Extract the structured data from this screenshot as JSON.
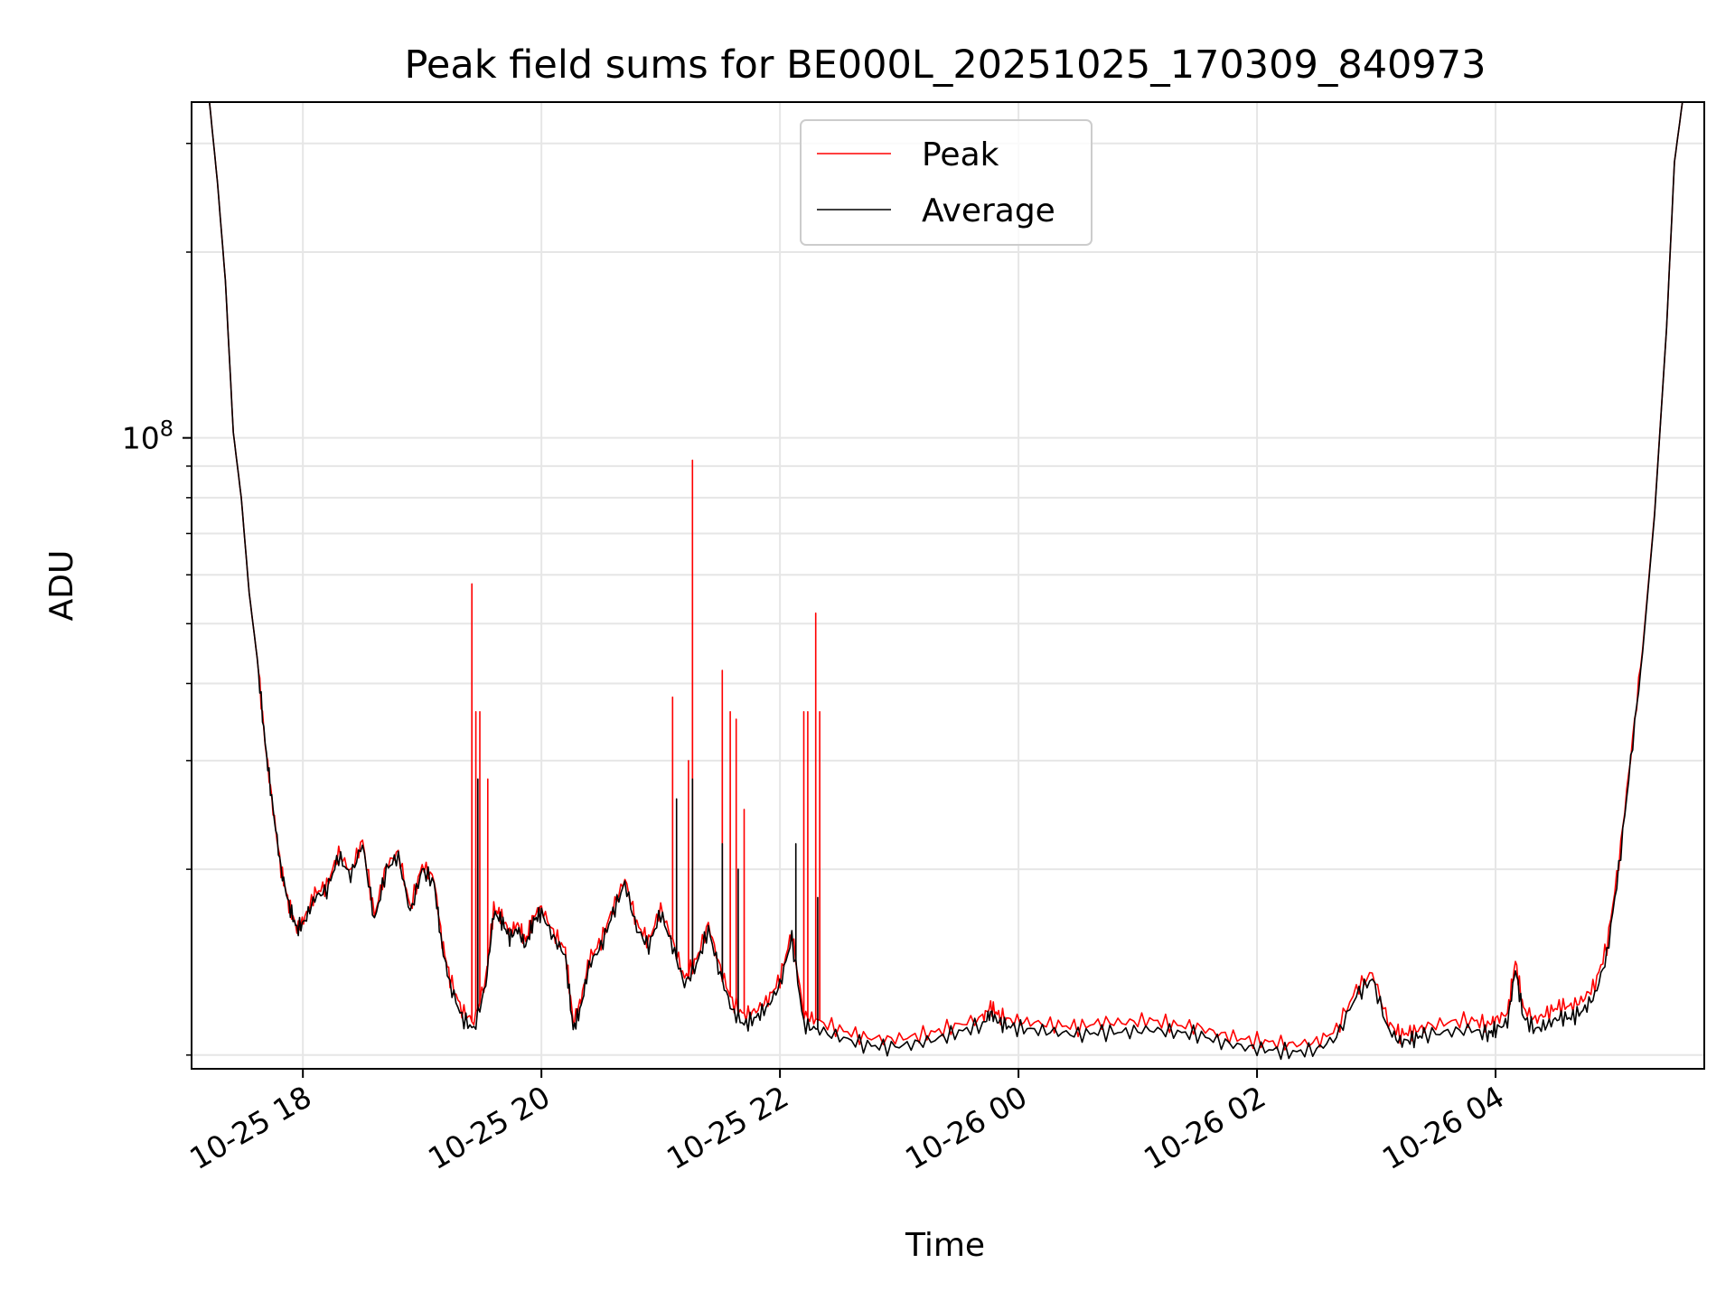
{
  "chart_data": {
    "type": "line",
    "title": "Peak field sums for BE000L_20251025_170309_840973",
    "xlabel": "Time",
    "ylabel": "ADU",
    "yscale": "log",
    "xlim": [
      "2025-10-25 17:04",
      "2025-10-26 05:45"
    ],
    "ylim": [
      9500000,
      350000000
    ],
    "grid": true,
    "legend_position": "top-center",
    "x_ticks": [
      {
        "t": "2025-10-25 18:00",
        "label": "10-25 18"
      },
      {
        "t": "2025-10-25 20:00",
        "label": "10-25 20"
      },
      {
        "t": "2025-10-25 22:00",
        "label": "10-25 22"
      },
      {
        "t": "2025-10-26 00:00",
        "label": "10-26 00"
      },
      {
        "t": "2025-10-26 02:00",
        "label": "10-26 02"
      },
      {
        "t": "2025-10-26 04:00",
        "label": "10-26 04"
      }
    ],
    "y_ticks": [
      {
        "v": 100000000,
        "base": "10",
        "exp": "8"
      }
    ],
    "y_minor_ticks": [
      10000000,
      20000000,
      30000000,
      40000000,
      50000000,
      60000000,
      70000000,
      80000000,
      90000000,
      200000000,
      300000000
    ],
    "x": [
      "2025-10-25 17:13",
      "2025-10-25 17:17",
      "2025-10-25 17:21",
      "2025-10-25 17:25",
      "2025-10-25 17:29",
      "2025-10-25 17:33",
      "2025-10-25 17:37",
      "2025-10-25 17:41",
      "2025-10-25 17:45",
      "2025-10-25 17:49",
      "2025-10-25 17:53",
      "2025-10-25 17:57",
      "2025-10-25 18:01",
      "2025-10-25 18:06",
      "2025-10-25 18:12",
      "2025-10-25 18:18",
      "2025-10-25 18:24",
      "2025-10-25 18:30",
      "2025-10-25 18:36",
      "2025-10-25 18:42",
      "2025-10-25 18:48",
      "2025-10-25 18:54",
      "2025-10-25 19:00",
      "2025-10-25 19:06",
      "2025-10-25 19:10",
      "2025-10-25 19:14",
      "2025-10-25 19:20",
      "2025-10-25 19:26",
      "2025-10-25 19:32",
      "2025-10-25 19:36",
      "2025-10-25 19:40",
      "2025-10-25 19:44",
      "2025-10-25 19:48",
      "2025-10-25 19:52",
      "2025-10-25 19:56",
      "2025-10-25 20:00",
      "2025-10-25 20:06",
      "2025-10-25 20:12",
      "2025-10-25 20:16",
      "2025-10-25 20:20",
      "2025-10-25 20:24",
      "2025-10-25 20:30",
      "2025-10-25 20:36",
      "2025-10-25 20:42",
      "2025-10-25 20:48",
      "2025-10-25 20:54",
      "2025-10-25 21:00",
      "2025-10-25 21:06",
      "2025-10-25 21:12",
      "2025-10-25 21:18",
      "2025-10-25 21:24",
      "2025-10-25 21:30",
      "2025-10-25 21:36",
      "2025-10-25 21:42",
      "2025-10-25 21:48",
      "2025-10-25 21:54",
      "2025-10-25 22:00",
      "2025-10-25 22:06",
      "2025-10-25 22:12",
      "2025-10-25 22:18",
      "2025-10-25 22:30",
      "2025-10-25 22:42",
      "2025-10-25 22:54",
      "2025-10-25 23:06",
      "2025-10-25 23:18",
      "2025-10-25 23:30",
      "2025-10-25 23:42",
      "2025-10-25 23:46",
      "2025-10-25 23:50",
      "2025-10-25 23:56",
      "2025-10-26 00:06",
      "2025-10-26 00:18",
      "2025-10-26 00:30",
      "2025-10-26 00:42",
      "2025-10-26 00:54",
      "2025-10-26 01:06",
      "2025-10-26 01:18",
      "2025-10-26 01:30",
      "2025-10-26 01:42",
      "2025-10-26 01:54",
      "2025-10-26 02:06",
      "2025-10-26 02:18",
      "2025-10-26 02:30",
      "2025-10-26 02:40",
      "2025-10-26 02:50",
      "2025-10-26 02:58",
      "2025-10-26 03:06",
      "2025-10-26 03:12",
      "2025-10-26 03:18",
      "2025-10-26 03:24",
      "2025-10-26 03:36",
      "2025-10-26 03:48",
      "2025-10-26 03:56",
      "2025-10-26 04:00",
      "2025-10-26 04:06",
      "2025-10-26 04:10",
      "2025-10-26 04:14",
      "2025-10-26 04:20",
      "2025-10-26 04:26",
      "2025-10-26 04:32",
      "2025-10-26 04:38",
      "2025-10-26 04:44",
      "2025-10-26 04:50",
      "2025-10-26 04:56",
      "2025-10-26 05:02",
      "2025-10-26 05:08",
      "2025-10-26 05:14",
      "2025-10-26 05:20",
      "2025-10-26 05:26",
      "2025-10-26 05:30",
      "2025-10-26 05:34"
    ],
    "series": [
      {
        "name": "Average",
        "color": "#000000",
        "values": [
          350000000,
          260000000,
          180000000,
          102000000,
          80000000,
          56000000,
          44000000,
          32000000,
          25000000,
          20000000,
          17500000,
          16000000,
          16500000,
          18000000,
          18500000,
          21000000,
          19500000,
          22000000,
          16500000,
          20000000,
          21000000,
          17000000,
          20000000,
          19000000,
          15000000,
          13000000,
          11500000,
          11000000,
          13000000,
          17000000,
          16500000,
          15500000,
          16000000,
          15000000,
          16500000,
          17000000,
          15500000,
          14500000,
          11000000,
          12000000,
          14000000,
          15000000,
          17000000,
          19000000,
          16000000,
          15000000,
          17000000,
          15000000,
          13000000,
          14000000,
          16000000,
          13500000,
          11800000,
          11200000,
          11500000,
          12000000,
          13000000,
          15500000,
          11200000,
          11000000,
          10700000,
          10400000,
          10300000,
          10400000,
          10600000,
          10900000,
          11200000,
          11700000,
          11300000,
          11100000,
          11000000,
          10900000,
          10800000,
          10900000,
          10900000,
          11000000,
          10900000,
          10800000,
          10500000,
          10300000,
          10200000,
          10100000,
          10200000,
          10700000,
          12500000,
          13300000,
          11000000,
          10500000,
          10600000,
          10800000,
          10900000,
          11000000,
          10800000,
          11000000,
          11300000,
          13800000,
          11500000,
          11000000,
          11200000,
          11500000,
          11500000,
          11800000,
          12500000,
          14500000,
          20000000,
          30000000,
          45000000,
          75000000,
          150000000,
          280000000,
          350000000
        ],
        "spikes": [
          {
            "t": "2025-10-25 19:28",
            "v": 28000000
          },
          {
            "t": "2025-10-25 21:08",
            "v": 26000000
          },
          {
            "t": "2025-10-25 21:16",
            "v": 28000000
          },
          {
            "t": "2025-10-25 21:31",
            "v": 22000000
          },
          {
            "t": "2025-10-25 21:39",
            "v": 20000000
          },
          {
            "t": "2025-10-25 22:08",
            "v": 22000000
          },
          {
            "t": "2025-10-25 22:19",
            "v": 18000000
          }
        ]
      },
      {
        "name": "Peak",
        "color": "#ff0000",
        "values": [
          350000000,
          260000000,
          180000000,
          102000000,
          80000000,
          56000000,
          44000000,
          32000000,
          25000000,
          20000000,
          17500000,
          16000000,
          16700000,
          18300000,
          18800000,
          21300000,
          19800000,
          22300000,
          16800000,
          20300000,
          21300000,
          17300000,
          20300000,
          19300000,
          15300000,
          13300000,
          11800000,
          11300000,
          13300000,
          17300000,
          16800000,
          15800000,
          16300000,
          15300000,
          16800000,
          17300000,
          15800000,
          14800000,
          11300000,
          12300000,
          14300000,
          15300000,
          17300000,
          19300000,
          16300000,
          15300000,
          17300000,
          15300000,
          13300000,
          14300000,
          16300000,
          13800000,
          12200000,
          11600000,
          11800000,
          12300000,
          13300000,
          15800000,
          11600000,
          11400000,
          11000000,
          10700000,
          10600000,
          10700000,
          10900000,
          11200000,
          11500000,
          12000000,
          11600000,
          11400000,
          11300000,
          11200000,
          11100000,
          11300000,
          11300000,
          11400000,
          11200000,
          11100000,
          10800000,
          10600000,
          10500000,
          10400000,
          10500000,
          11000000,
          12800000,
          13600000,
          11300000,
          10800000,
          10900000,
          11100000,
          11300000,
          11400000,
          11200000,
          11400000,
          11700000,
          14200000,
          11900000,
          11400000,
          11700000,
          12000000,
          12000000,
          12300000,
          13000000,
          15000000,
          20500000,
          30500000,
          45500000,
          75500000,
          150000000,
          280000000,
          350000000
        ],
        "spikes": [
          {
            "t": "2025-10-25 19:25",
            "v": 58000000
          },
          {
            "t": "2025-10-25 19:27",
            "v": 36000000
          },
          {
            "t": "2025-10-25 19:29",
            "v": 36000000
          },
          {
            "t": "2025-10-25 19:33",
            "v": 28000000
          },
          {
            "t": "2025-10-25 21:06",
            "v": 38000000
          },
          {
            "t": "2025-10-25 21:14",
            "v": 30000000
          },
          {
            "t": "2025-10-25 21:16",
            "v": 92000000
          },
          {
            "t": "2025-10-25 21:31",
            "v": 42000000
          },
          {
            "t": "2025-10-25 21:35",
            "v": 36000000
          },
          {
            "t": "2025-10-25 21:38",
            "v": 35000000
          },
          {
            "t": "2025-10-25 21:42",
            "v": 25000000
          },
          {
            "t": "2025-10-25 22:12",
            "v": 36000000
          },
          {
            "t": "2025-10-25 22:14",
            "v": 36000000
          },
          {
            "t": "2025-10-25 22:18",
            "v": 52000000
          },
          {
            "t": "2025-10-25 22:20",
            "v": 36000000
          }
        ]
      }
    ]
  }
}
